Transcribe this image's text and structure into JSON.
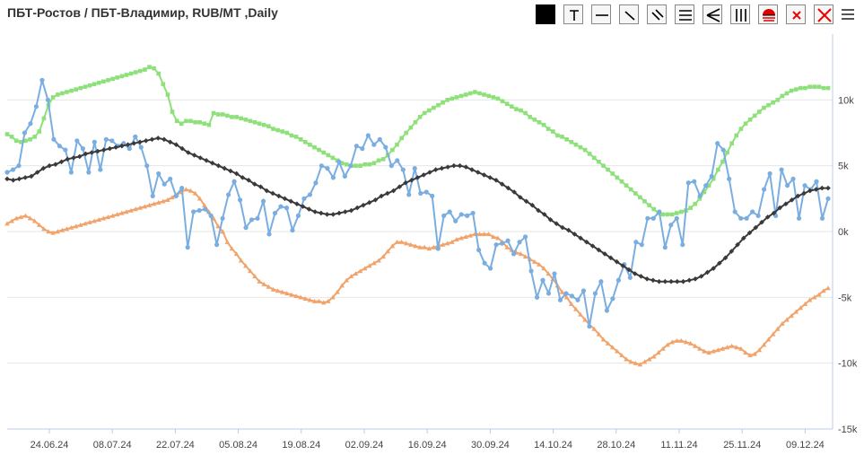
{
  "title": "ПБТ-Ростов / ПБТ-Владимир, RUB/MT ,Daily",
  "toolbar": {
    "icons": [
      "fill-square-icon",
      "text-tool-icon",
      "horizontal-line-icon",
      "diagonal-line-icon",
      "parallel-lines-icon",
      "equal-lines-icon",
      "fan-lines-icon",
      "vertical-lines-icon",
      "levels-icon",
      "delete-icon",
      "delete-all-icon"
    ]
  },
  "menu_icon": "hamburger-menu-icon",
  "colors": {
    "blue": "#7aaee0",
    "green": "#8ee07a",
    "black": "#3a3a3a",
    "orange": "#f0a36a",
    "grid": "#e6e6e6"
  },
  "chart_data": {
    "type": "line",
    "x_tick_labels": [
      "24.06.24",
      "08.07.24",
      "22.07.24",
      "05.08.24",
      "19.08.24",
      "02.09.24",
      "16.09.24",
      "30.09.24",
      "14.10.24",
      "28.10.24",
      "11.11.24",
      "25.11.24",
      "09.12.24"
    ],
    "y_tick_labels": [
      "10k",
      "5k",
      "0k",
      "-5k",
      "-10k",
      "-15k"
    ],
    "y_ticks": [
      10000,
      5000,
      0,
      -5000,
      -10000,
      -15000
    ],
    "ylim": [
      -15000,
      15000
    ],
    "grid": true,
    "series": [
      {
        "color": "blue",
        "marker": "circle",
        "values": [
          4500,
          4700,
          5000,
          7500,
          8200,
          9500,
          11500,
          10000,
          7000,
          6500,
          6200,
          4500,
          6900,
          6300,
          4500,
          6800,
          4700,
          7000,
          6900,
          6500,
          6700,
          6300,
          7200,
          6400,
          5000,
          2700,
          4400,
          3600,
          4000,
          2700,
          3300,
          -1200,
          1500,
          1600,
          1700,
          1200,
          -1000,
          1000,
          2800,
          3800,
          2400,
          300,
          900,
          1000,
          2300,
          -200,
          1400,
          1900,
          1800,
          100,
          1200,
          2500,
          2800,
          3700,
          5000,
          4800,
          4100,
          5300,
          4200,
          5000,
          6500,
          6300,
          7300,
          6600,
          7000,
          6400,
          5000,
          5400,
          4700,
          2800,
          4800,
          2900,
          3000,
          2700,
          -1300,
          1200,
          1500,
          800,
          1300,
          1200,
          1400,
          -1400,
          -2400,
          -2800,
          -1000,
          -900,
          -700,
          -1700,
          -800,
          -400,
          -3000,
          -5000,
          -3700,
          -4700,
          -3200,
          -5200,
          -4700,
          -4900,
          -5200,
          -4500,
          -7200,
          -4700,
          -3800,
          -6000,
          -5100,
          -3700,
          -2500,
          -3500,
          -800,
          -1000,
          1000,
          1000,
          1500,
          -1200,
          500,
          1000,
          -1000,
          3700,
          3800,
          2700,
          3500,
          4200,
          6700,
          6200,
          4000,
          1500,
          1000,
          1000,
          1500,
          1200,
          3200,
          4400,
          1200,
          4700,
          3500,
          4000,
          1000,
          3500,
          3200,
          3800,
          1000,
          2500
        ]
      },
      {
        "color": "green",
        "marker": "square",
        "values": [
          7400,
          7200,
          6900,
          6800,
          6900,
          7000,
          7200,
          7600,
          8600,
          9600,
          10200,
          10400,
          10500,
          10600,
          10700,
          10800,
          10900,
          11000,
          11100,
          11200,
          11300,
          11400,
          11500,
          11600,
          11700,
          11800,
          11900,
          12000,
          12100,
          12200,
          12300,
          12500,
          12400,
          12000,
          11200,
          10400,
          9100,
          8400,
          8200,
          8400,
          8400,
          8300,
          8300,
          8200,
          8100,
          9000,
          8900,
          8900,
          8800,
          8700,
          8700,
          8600,
          8500,
          8400,
          8300,
          8200,
          8100,
          8000,
          7800,
          7700,
          7600,
          7500,
          7300,
          7200,
          7000,
          6800,
          6600,
          6400,
          6200,
          6000,
          5800,
          5600,
          5400,
          5200,
          5100,
          5000,
          5000,
          5000,
          5100,
          5100,
          5200,
          5400,
          5500,
          5800,
          6200,
          6600,
          7100,
          7500,
          7900,
          8300,
          8700,
          9000,
          9200,
          9400,
          9600,
          9800,
          10000,
          10100,
          10200,
          10300,
          10400,
          10500,
          10600,
          10500,
          10400,
          10300,
          10200,
          10100,
          9900,
          9700,
          9500,
          9300,
          9200,
          9000,
          8700,
          8500,
          8300,
          8100,
          7800,
          7600,
          7300,
          7200,
          7000,
          6800,
          6600,
          6400,
          6200,
          5900,
          5600,
          5300,
          5000,
          4700,
          4400,
          4100,
          3800,
          3500,
          3200,
          2900,
          2600,
          2300,
          2000,
          1700,
          1400,
          1300,
          1300,
          1300,
          1400,
          1500,
          1600,
          1800,
          2100,
          2500,
          3000,
          3500,
          4000,
          4700,
          5300,
          6000,
          6700,
          7300,
          7800,
          8200,
          8500,
          8800,
          9100,
          9400,
          9600,
          9800,
          10000,
          10300,
          10500,
          10700,
          10800,
          10900,
          10900,
          11000,
          11000,
          11000,
          10900,
          10900
        ]
      },
      {
        "color": "black",
        "marker": "diamond",
        "values": [
          4000,
          3900,
          4000,
          4100,
          4200,
          4500,
          4800,
          5000,
          5100,
          5300,
          5500,
          5600,
          5700,
          5900,
          6000,
          6100,
          6200,
          6300,
          6400,
          6500,
          6600,
          6700,
          6800,
          6900,
          7000,
          7100,
          7000,
          6800,
          6600,
          6300,
          6000,
          5800,
          5600,
          5400,
          5200,
          5000,
          4800,
          4600,
          4400,
          4100,
          3900,
          3600,
          3400,
          3100,
          2900,
          2700,
          2500,
          2300,
          2100,
          1900,
          1700,
          1500,
          1400,
          1300,
          1300,
          1400,
          1500,
          1600,
          1800,
          2000,
          2200,
          2400,
          2700,
          2900,
          3100,
          3400,
          3700,
          3900,
          4100,
          4300,
          4500,
          4700,
          4800,
          4900,
          5000,
          5000,
          4900,
          4700,
          4500,
          4300,
          4100,
          3900,
          3600,
          3300,
          3000,
          2600,
          2300,
          2000,
          1600,
          1300,
          900,
          600,
          300,
          100,
          -200,
          -500,
          -800,
          -1100,
          -1400,
          -1700,
          -2000,
          -2300,
          -2600,
          -2900,
          -3200,
          -3400,
          -3600,
          -3700,
          -3800,
          -3800,
          -3800,
          -3800,
          -3800,
          -3700,
          -3600,
          -3400,
          -3100,
          -2800,
          -2400,
          -2000,
          -1500,
          -1000,
          -500,
          -100,
          300,
          700,
          1100,
          1400,
          1800,
          2100,
          2400,
          2700,
          2900,
          3100,
          3200,
          3300,
          3300
        ]
      },
      {
        "color": "orange",
        "marker": "triangle",
        "values": [
          600,
          800,
          1000,
          1100,
          1200,
          1000,
          800,
          500,
          200,
          0,
          -100,
          0,
          100,
          200,
          300,
          400,
          500,
          600,
          700,
          800,
          900,
          1000,
          1100,
          1200,
          1300,
          1400,
          1500,
          1600,
          1700,
          1800,
          1900,
          2000,
          2100,
          2200,
          2300,
          2400,
          2600,
          2800,
          3000,
          3200,
          3100,
          2900,
          2500,
          2000,
          1500,
          1000,
          400,
          0,
          -800,
          -1300,
          -1700,
          -2200,
          -2600,
          -3000,
          -3400,
          -3800,
          -4000,
          -4200,
          -4400,
          -4500,
          -4600,
          -4700,
          -4800,
          -4900,
          -5000,
          -5100,
          -5200,
          -5300,
          -5300,
          -5400,
          -5300,
          -5000,
          -4600,
          -4100,
          -3700,
          -3400,
          -3200,
          -3000,
          -2800,
          -2600,
          -2400,
          -2200,
          -1900,
          -1500,
          -1100,
          -800,
          -800,
          -900,
          -1000,
          -1100,
          -1200,
          -1200,
          -1300,
          -1200,
          -1100,
          -1000,
          -900,
          -800,
          -600,
          -500,
          -400,
          -300,
          -200,
          -200,
          -200,
          -200,
          -400,
          -500,
          -800,
          -1200,
          -1400,
          -1600,
          -1700,
          -1900,
          -2100,
          -2300,
          -2500,
          -2800,
          -3200,
          -3600,
          -4100,
          -4600,
          -5000,
          -5500,
          -5900,
          -6300,
          -6700,
          -7100,
          -7400,
          -7800,
          -8200,
          -8500,
          -8800,
          -9100,
          -9400,
          -9700,
          -9900,
          -10000,
          -10100,
          -9900,
          -9700,
          -9500,
          -9200,
          -8900,
          -8600,
          -8400,
          -8300,
          -8300,
          -8400,
          -8500,
          -8700,
          -8900,
          -9100,
          -9200,
          -9100,
          -9000,
          -8900,
          -8800,
          -8700,
          -8800,
          -8900,
          -9200,
          -9400,
          -9300,
          -9000,
          -8600,
          -8200,
          -7800,
          -7400,
          -7000,
          -6700,
          -6400,
          -6100,
          -5800,
          -5500,
          -5200,
          -5000,
          -4800,
          -4500,
          -4300
        ]
      }
    ]
  }
}
